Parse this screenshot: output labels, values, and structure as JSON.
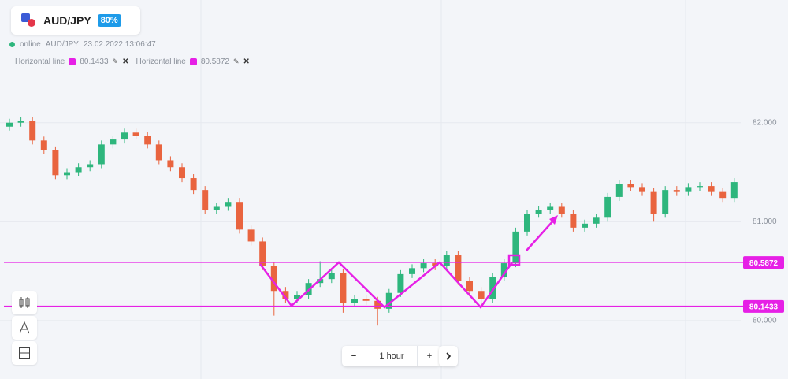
{
  "header": {
    "pair": "AUD/JPY",
    "payout": "80%"
  },
  "status": {
    "state": "online",
    "pair": "AUD/JPY",
    "timestamp": "23.02.2022 13:06:47"
  },
  "controls": {
    "minus": "−",
    "timeframe": "1 hour",
    "plus": "+"
  },
  "chart_data": {
    "type": "candlestick",
    "up_color": "#2eb67d",
    "down_color": "#e9643f",
    "ylim": [
      79.41,
      83.24
    ],
    "yticks": [
      {
        "value": 80,
        "label": "80.000"
      },
      {
        "value": 81,
        "label": "81.000"
      },
      {
        "value": 82,
        "label": "82.000"
      }
    ],
    "grid": true,
    "hlines": [
      {
        "name": "Horizontal line",
        "value": 80.1433,
        "color": "#e620e6"
      },
      {
        "name": "Horizontal line",
        "value": 80.5872,
        "color": "#e620e6"
      }
    ],
    "open": [
      81.96,
      82.0,
      82.02,
      81.82,
      81.72,
      81.47,
      81.5,
      81.55,
      81.58,
      81.78,
      81.83,
      81.9,
      81.87,
      81.78,
      81.62,
      81.55,
      81.44,
      81.32,
      81.12,
      81.15,
      81.2,
      80.92,
      80.8,
      80.55,
      80.3,
      80.22,
      80.26,
      80.38,
      80.42,
      80.48,
      80.18,
      80.22,
      80.2,
      80.12,
      80.28,
      80.47,
      80.53,
      80.58,
      80.55,
      80.66,
      80.4,
      80.3,
      80.22,
      80.44,
      80.58,
      80.9,
      81.08,
      81.12,
      81.15,
      81.08,
      80.94,
      80.98,
      81.04,
      81.25,
      81.38,
      81.35,
      81.3,
      81.08,
      81.32,
      81.3,
      81.35,
      81.36,
      81.3,
      81.24
    ],
    "high": [
      82.04,
      82.06,
      82.06,
      81.86,
      81.76,
      81.54,
      81.59,
      81.62,
      81.82,
      81.87,
      81.94,
      81.94,
      81.91,
      81.82,
      81.66,
      81.59,
      81.48,
      81.36,
      81.19,
      81.24,
      81.24,
      80.96,
      80.84,
      80.59,
      80.34,
      80.3,
      80.42,
      80.6,
      80.52,
      80.52,
      80.26,
      80.26,
      80.24,
      80.32,
      80.51,
      80.57,
      80.62,
      80.62,
      80.7,
      80.7,
      80.44,
      80.34,
      80.48,
      80.62,
      80.94,
      81.12,
      81.16,
      81.19,
      81.19,
      81.12,
      81.02,
      81.08,
      81.29,
      81.42,
      81.42,
      81.39,
      81.34,
      81.36,
      81.36,
      81.39,
      81.4,
      81.4,
      81.34,
      81.44
    ],
    "low": [
      81.92,
      81.96,
      81.78,
      81.68,
      81.43,
      81.43,
      81.46,
      81.51,
      81.54,
      81.74,
      81.79,
      81.83,
      81.74,
      81.58,
      81.51,
      81.4,
      81.28,
      81.08,
      81.08,
      81.11,
      80.88,
      80.76,
      80.51,
      80.05,
      80.18,
      80.18,
      80.22,
      80.34,
      80.38,
      80.08,
      80.14,
      80.16,
      79.95,
      80.08,
      80.24,
      80.43,
      80.49,
      80.51,
      80.51,
      80.36,
      80.26,
      80.14,
      80.18,
      80.4,
      80.54,
      80.86,
      81.04,
      81.08,
      81.04,
      80.9,
      80.9,
      80.94,
      81.0,
      81.21,
      81.31,
      81.26,
      81.0,
      81.04,
      81.26,
      81.26,
      81.31,
      81.26,
      81.2,
      81.2
    ],
    "close": [
      82.0,
      82.02,
      81.82,
      81.72,
      81.47,
      81.5,
      81.55,
      81.58,
      81.78,
      81.83,
      81.9,
      81.87,
      81.78,
      81.62,
      81.55,
      81.44,
      81.32,
      81.12,
      81.15,
      81.2,
      80.92,
      80.8,
      80.55,
      80.3,
      80.22,
      80.26,
      80.38,
      80.42,
      80.48,
      80.18,
      80.22,
      80.2,
      80.12,
      80.28,
      80.47,
      80.53,
      80.58,
      80.55,
      80.66,
      80.4,
      80.3,
      80.22,
      80.44,
      80.58,
      80.9,
      81.08,
      81.12,
      81.15,
      81.08,
      80.94,
      80.98,
      81.04,
      81.25,
      81.38,
      81.35,
      81.3,
      81.08,
      81.32,
      81.3,
      81.35,
      81.36,
      81.3,
      81.24,
      81.4
    ]
  }
}
